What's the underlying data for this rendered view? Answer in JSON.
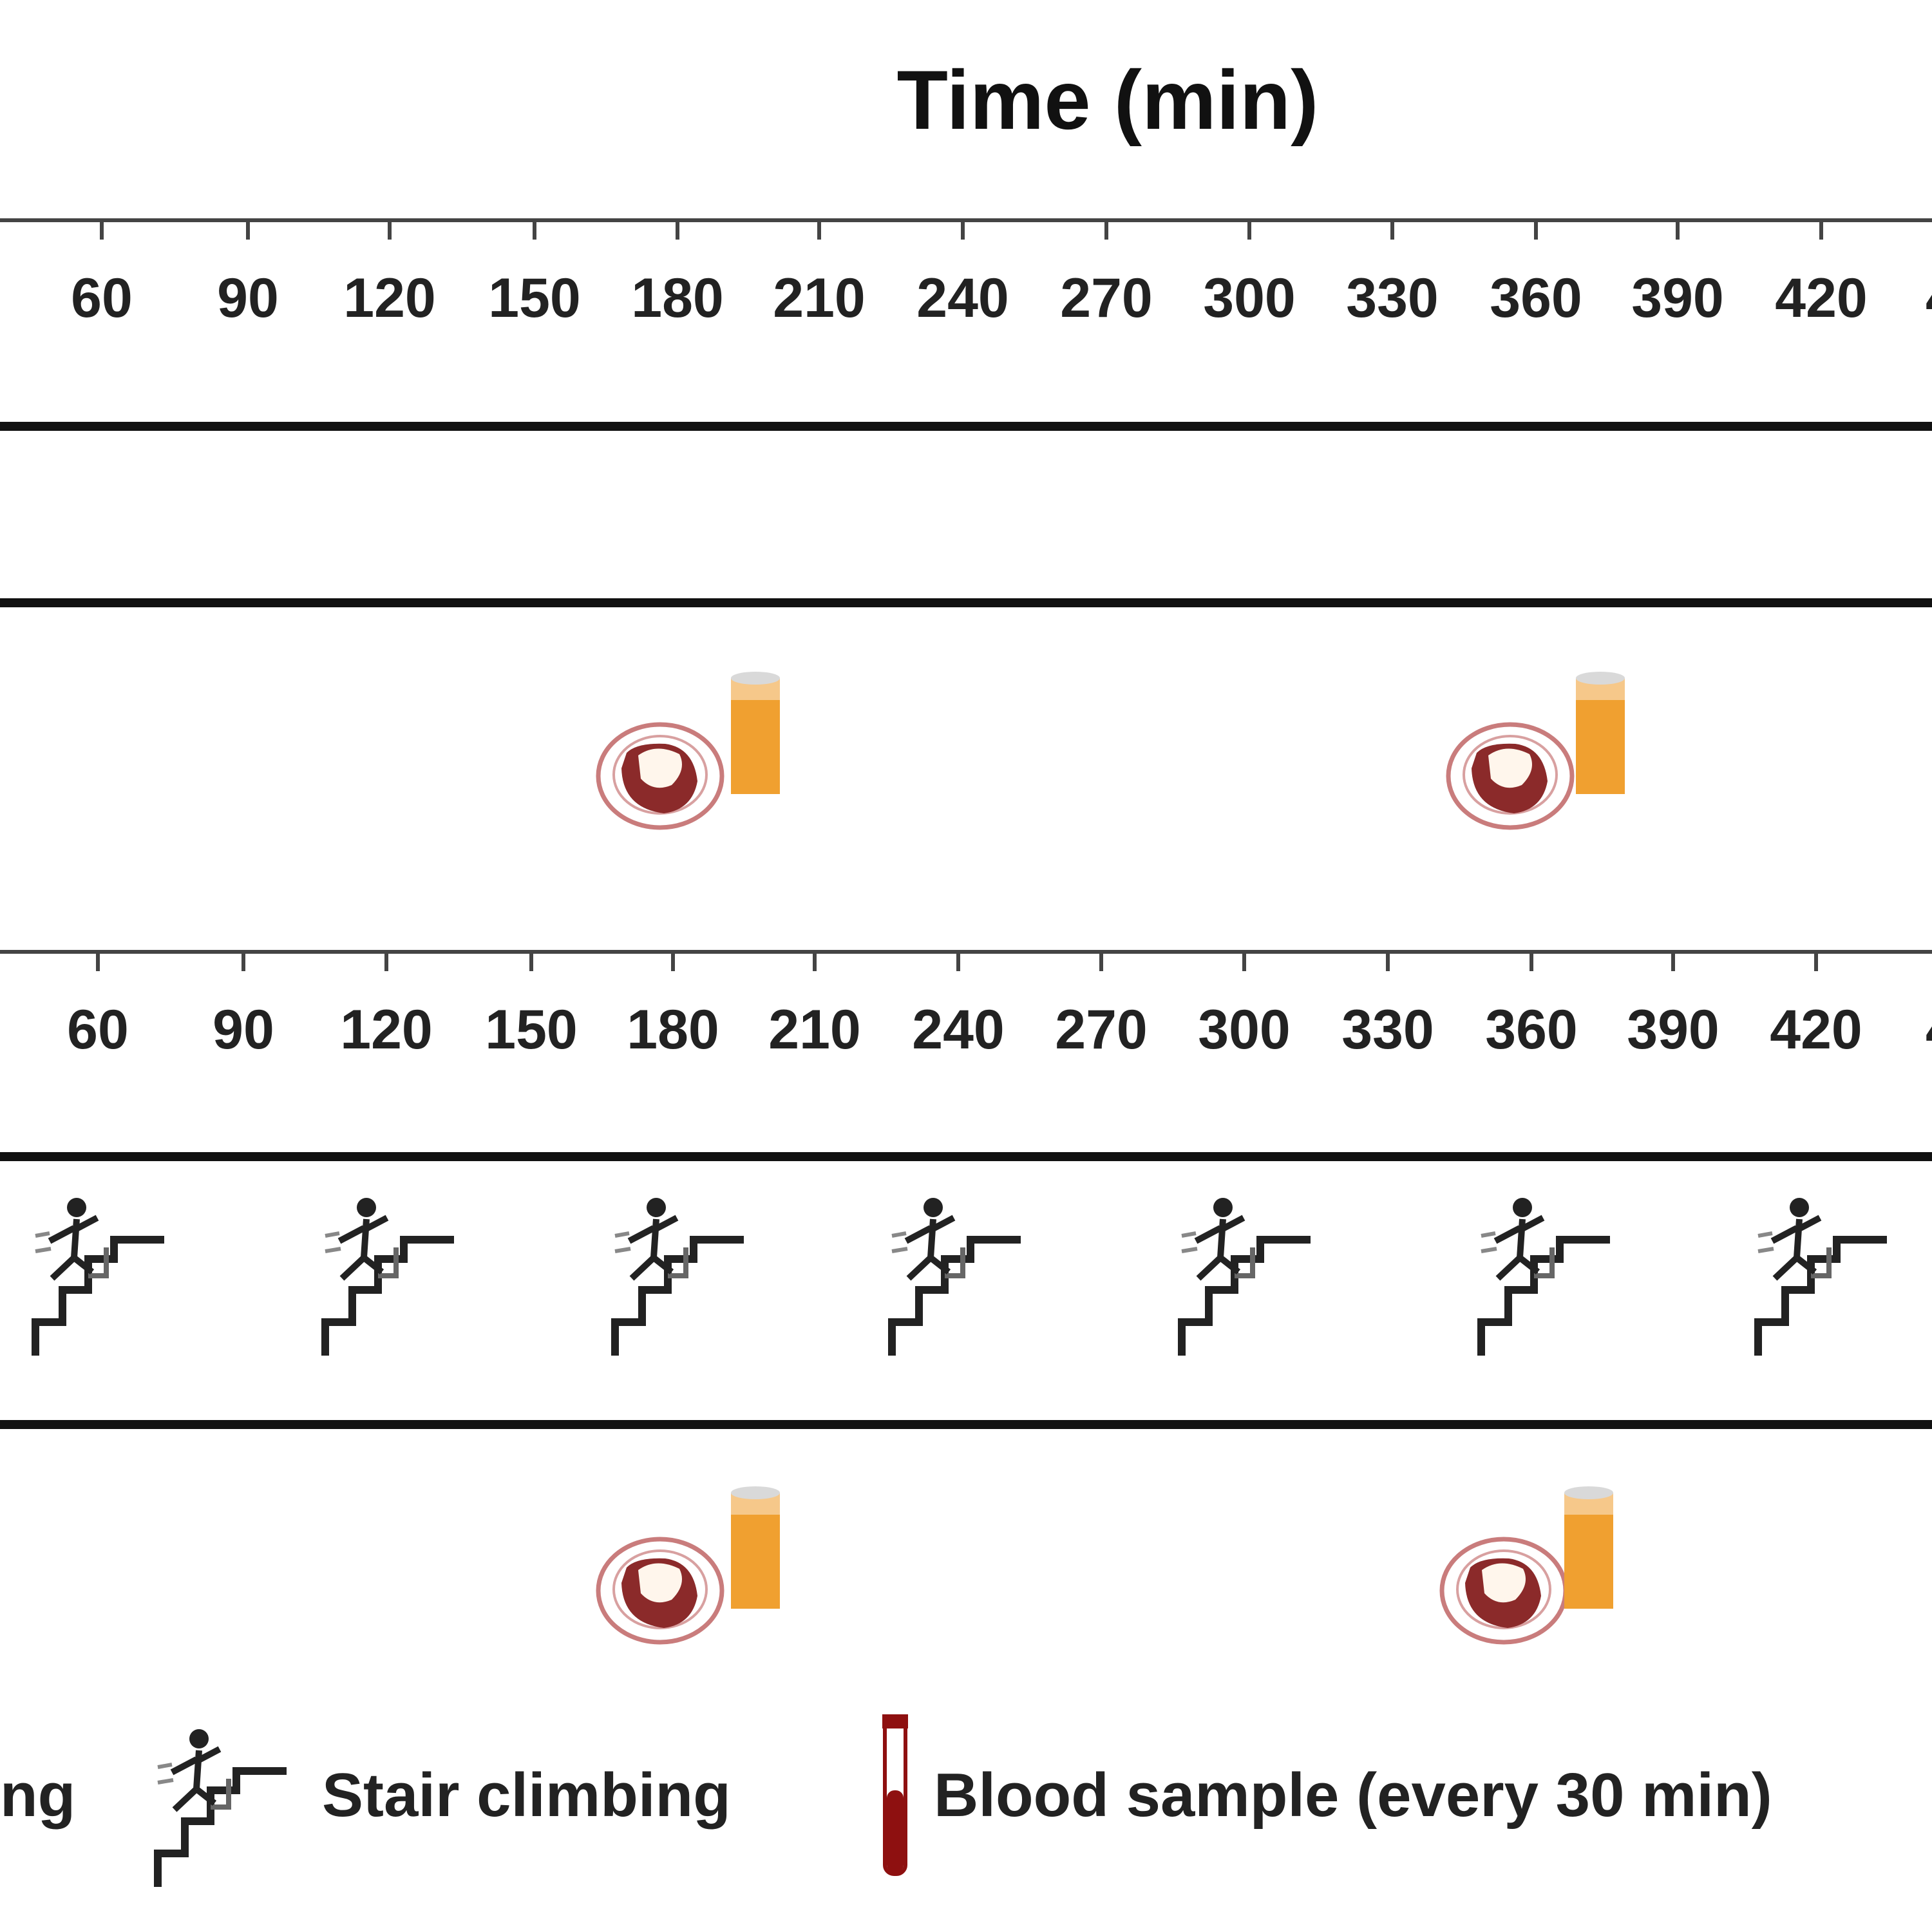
{
  "title": "Time (min)",
  "time_axis": {
    "ticks": [
      "60",
      "90",
      "120",
      "150",
      "180",
      "210",
      "240",
      "270",
      "300",
      "330",
      "360",
      "390",
      "420",
      "4"
    ],
    "unit": "min"
  },
  "rows": [
    {
      "id": "trial-a-meals",
      "event": "meal",
      "icons": [
        "meal-plate-icon",
        "drink-glass-icon"
      ],
      "times_min": [
        180,
        360
      ]
    },
    {
      "id": "trial-b-stairs",
      "event": "stair climbing",
      "icon": "stair-climbing-icon",
      "times_min": [
        45,
        105,
        165,
        225,
        285,
        345,
        405
      ]
    },
    {
      "id": "trial-b-meals",
      "event": "meal",
      "icons": [
        "meal-plate-icon",
        "drink-glass-icon"
      ],
      "times_min": [
        180,
        360
      ]
    }
  ],
  "legend": {
    "partial_label": "ng",
    "stair_label": "Stair climbing",
    "blood_label": "Blood sample (every 30 min)"
  },
  "colors": {
    "meal_red": "#8B2A2A",
    "plate_outline": "#C97C7C",
    "drink_orange": "#F0A030",
    "blood_red": "#8E1010"
  }
}
